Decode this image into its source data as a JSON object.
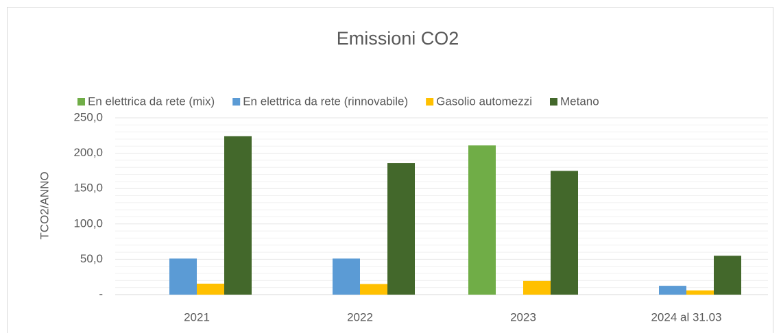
{
  "chart_data": {
    "type": "bar",
    "title": "Emissioni CO2",
    "y_label": "TCO2/ANNO",
    "categories": [
      "2021",
      "2022",
      "2023",
      "2024 al 31.03"
    ],
    "series": [
      {
        "name": "En elettrica da rete (mix)",
        "color": "#70ad47",
        "values": [
          0,
          0,
          211,
          0
        ]
      },
      {
        "name": "En elettrica da rete (rinnovabile)",
        "color": "#5b9bd5",
        "values": [
          51,
          51,
          0,
          12.5
        ]
      },
      {
        "name": "Gasolio automezzi",
        "color": "#ffc000",
        "values": [
          15.5,
          15,
          19.5,
          6
        ]
      },
      {
        "name": "Metano",
        "color": "#43682b",
        "values": [
          224,
          186,
          175,
          55
        ]
      }
    ],
    "ylim": [
      0,
      250
    ],
    "yticks": [
      {
        "value": 0,
        "label": "-"
      },
      {
        "value": 50,
        "label": "50,0"
      },
      {
        "value": 100,
        "label": "100,0"
      },
      {
        "value": 150,
        "label": "150,0"
      },
      {
        "value": 200,
        "label": "200,0"
      },
      {
        "value": 250,
        "label": "250,0"
      }
    ],
    "minor_yticks": [
      10,
      20,
      30,
      40,
      60,
      70,
      80,
      90,
      110,
      120,
      130,
      140,
      160,
      170,
      180,
      190,
      210,
      220,
      230,
      240
    ],
    "grid": true,
    "legend": "top"
  }
}
